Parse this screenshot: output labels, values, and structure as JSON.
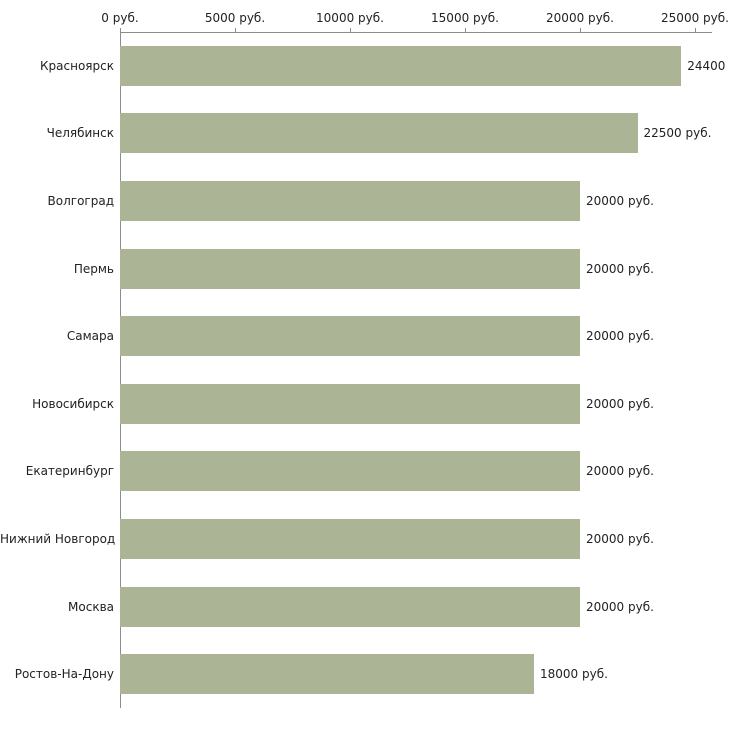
{
  "chart_data": {
    "type": "bar",
    "orientation": "horizontal",
    "title": "",
    "unit": "руб.",
    "categories": [
      "Красноярск",
      "Челябинск",
      "Волгоград",
      "Пермь",
      "Самара",
      "Новосибирск",
      "Екатеринбург",
      "Нижний Новгород",
      "Москва",
      "Ростов-На-Дону"
    ],
    "values": [
      24400,
      22500,
      20000,
      20000,
      20000,
      20000,
      20000,
      20000,
      20000,
      18000
    ],
    "value_labels": [
      "24400",
      "22500 руб.",
      "20000 руб.",
      "20000 руб.",
      "20000 руб.",
      "20000 руб.",
      "20000 руб.",
      "20000 руб.",
      "20000 руб.",
      "18000 руб."
    ],
    "x_axis": {
      "position": "top",
      "min": 0,
      "max": 25000,
      "ticks": [
        0,
        5000,
        10000,
        15000,
        20000,
        25000
      ],
      "tick_labels": [
        "0 руб.",
        "5000 руб.",
        "10000 руб.",
        "15000 руб.",
        "20000 руб.",
        "25000 руб."
      ]
    },
    "legend": "none",
    "grid": "off",
    "bar_color": "#abb494",
    "axis_color": "#8c8c8c",
    "text_color": "#222222",
    "background": "#ffffff"
  }
}
